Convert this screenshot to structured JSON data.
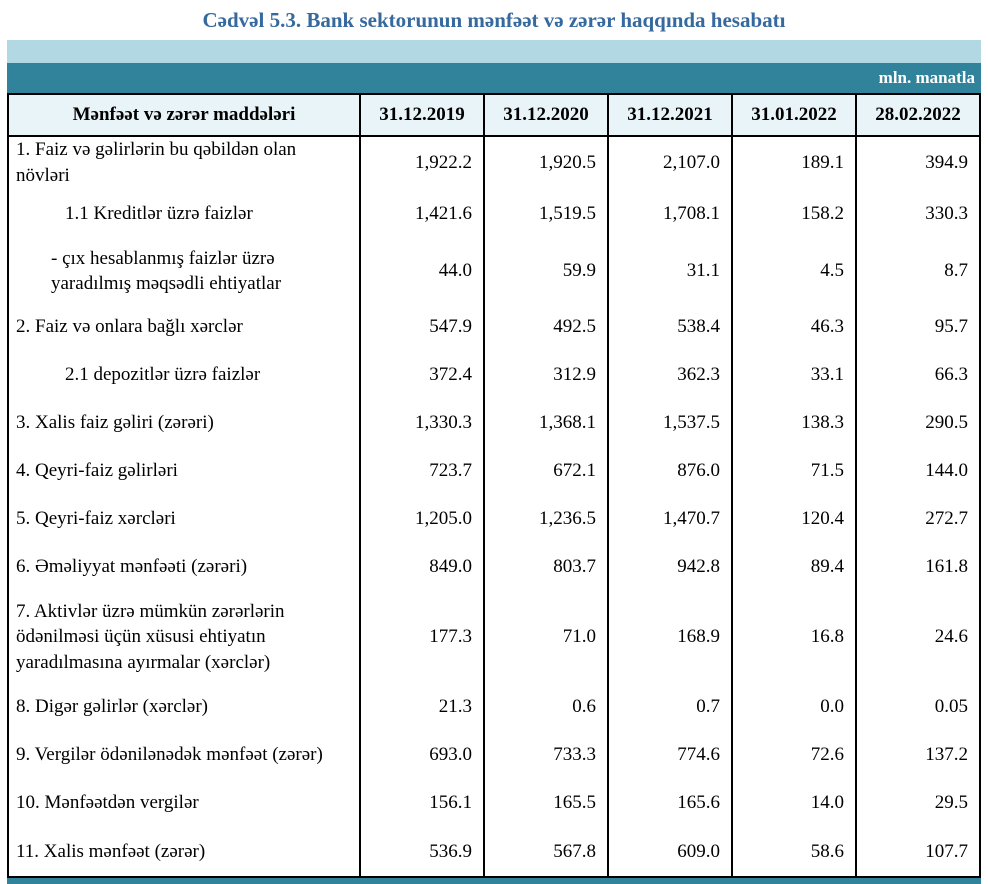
{
  "title": "Cədvəl 5.3. Bank sektorunun mənfəət və zərər haqqında hesabatı",
  "unit_label": "mln. manatla",
  "colors": {
    "title": "#36699e",
    "band_light": "#b2d8e3",
    "band_teal": "#31839b",
    "header_bg": "#e9f4f8",
    "border": "#000000"
  },
  "table": {
    "header": [
      "Mənfəət və zərər maddələri",
      "31.12.2019",
      "31.12.2020",
      "31.12.2021",
      "31.01.2022",
      "28.02.2022"
    ],
    "rows": [
      {
        "label": "1. Faiz və gəlirlərin bu qəbildən olan növləri",
        "indent": 0,
        "values": [
          "1,922.2",
          "1,920.5",
          "2,107.0",
          "189.1",
          "394.9"
        ]
      },
      {
        "label": "1.1 Kreditlər üzrə faizlər",
        "indent": 1,
        "values": [
          "1,421.6",
          "1,519.5",
          "1,708.1",
          "158.2",
          "330.3"
        ]
      },
      {
        "label": "-  çıx hesablanmış faizlər üzrə yaradılmış məqsədli ehtiyatlar",
        "indent": 2,
        "values": [
          "44.0",
          "59.9",
          "31.1",
          "4.5",
          "8.7"
        ]
      },
      {
        "label": "2. Faiz və onlara bağlı xərclər",
        "indent": 0,
        "values": [
          "547.9",
          "492.5",
          "538.4",
          "46.3",
          "95.7"
        ]
      },
      {
        "label": "2.1 depozitlər üzrə faizlər",
        "indent": 1,
        "values": [
          "372.4",
          "312.9",
          "362.3",
          "33.1",
          "66.3"
        ]
      },
      {
        "label": "3. Xalis faiz gəliri (zərəri)",
        "indent": 0,
        "values": [
          "1,330.3",
          "1,368.1",
          "1,537.5",
          "138.3",
          "290.5"
        ]
      },
      {
        "label": "4. Qeyri-faiz gəlirləri",
        "indent": 0,
        "values": [
          "723.7",
          "672.1",
          "876.0",
          "71.5",
          "144.0"
        ]
      },
      {
        "label": "5. Qeyri-faiz xərcləri",
        "indent": 0,
        "values": [
          "1,205.0",
          "1,236.5",
          "1,470.7",
          "120.4",
          "272.7"
        ]
      },
      {
        "label": "6. Əməliyyat mənfəəti (zərəri)",
        "indent": 0,
        "values": [
          "849.0",
          "803.7",
          "942.8",
          "89.4",
          "161.8"
        ]
      },
      {
        "label": "7. Aktivlər üzrə mümkün zərərlərin ödənilməsi üçün xüsusi ehtiyatın yaradılmasına ayırmalar (xərclər)",
        "indent": 0,
        "values": [
          "177.3",
          "71.0",
          "168.9",
          "16.8",
          "24.6"
        ]
      },
      {
        "label": "8. Digər gəlirlər (xərclər)",
        "indent": 0,
        "values": [
          "21.3",
          "0.6",
          "0.7",
          "0.0",
          "0.05"
        ]
      },
      {
        "label": "9. Vergilər ödənilənədək mənfəət (zərər)",
        "indent": 0,
        "values": [
          "693.0",
          "733.3",
          "774.6",
          "72.6",
          "137.2"
        ]
      },
      {
        "label": "10. Mənfəətdən vergilər",
        "indent": 0,
        "values": [
          "156.1",
          "165.5",
          "165.6",
          "14.0",
          "29.5"
        ]
      },
      {
        "label": "11. Xalis mənfəət (zərər)",
        "indent": 0,
        "values": [
          "536.9",
          "567.8",
          "609.0",
          "58.6",
          "107.7"
        ]
      }
    ]
  }
}
